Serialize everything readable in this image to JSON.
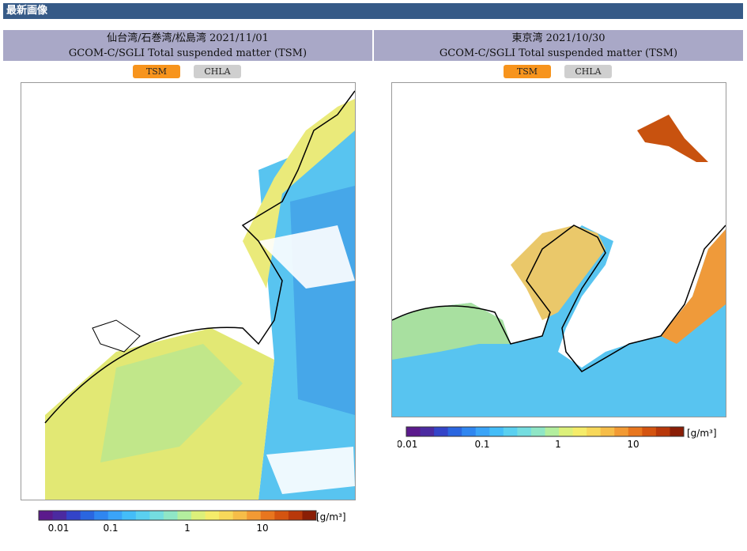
{
  "header": {
    "title": "最新画像"
  },
  "panels": [
    {
      "title": "仙台湾/石巻湾/松島湾 2021/11/01",
      "subtitle": "GCOM-C/SGLI Total suspended matter (TSM)",
      "buttons": [
        "TSM",
        "CHLA"
      ],
      "colorbar": {
        "ticks": [
          "0.01",
          "0.1",
          "1",
          "10"
        ],
        "unit": "[g/m³]"
      }
    },
    {
      "title": "東京湾 2021/10/30",
      "subtitle": "GCOM-C/SGLI Total suspended matter (TSM)",
      "buttons": [
        "TSM",
        "CHLA"
      ],
      "colorbar": {
        "ticks": [
          "0.01",
          "0.1",
          "1",
          "10"
        ],
        "unit": "[g/m³]"
      }
    }
  ]
}
